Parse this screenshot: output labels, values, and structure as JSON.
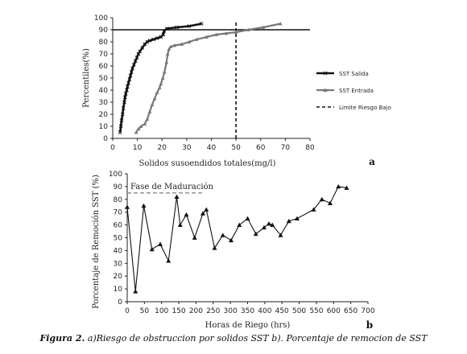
{
  "chart_data": [
    {
      "type": "line",
      "panel": "a",
      "xlabel": "Solidos susoendidos totales(mg/l)",
      "ylabel": "Percentiles(%)",
      "xlim": [
        0,
        80
      ],
      "ylim": [
        0,
        100
      ],
      "xticks": [
        0,
        10,
        20,
        30,
        40,
        50,
        60,
        70,
        80
      ],
      "yticks": [
        0,
        10,
        20,
        30,
        40,
        50,
        60,
        70,
        80,
        90,
        100
      ],
      "legend_position": "right",
      "series": [
        {
          "name": "SST Salida",
          "color": "#111111",
          "marker": "x",
          "x": [
            3,
            3.3,
            3.6,
            4,
            4.3,
            4.7,
            5,
            5.3,
            5.7,
            6,
            6.4,
            6.8,
            7.2,
            7.6,
            8,
            8.6,
            9.2,
            9.8,
            10.4,
            11,
            12,
            13,
            14,
            15,
            16.5,
            18,
            19.5,
            20.5,
            20.8,
            22,
            26,
            31,
            36
          ],
          "y": [
            5,
            10,
            15,
            20,
            25,
            30,
            34,
            37,
            40,
            43,
            46,
            49,
            52,
            55,
            58,
            61,
            64,
            67,
            70,
            72,
            75,
            78,
            80,
            81,
            82,
            83,
            84,
            86,
            89,
            91,
            92,
            93,
            95
          ]
        },
        {
          "name": "SST Entrada",
          "color": "#777777",
          "marker": "triangle",
          "x": [
            9.5,
            10.5,
            11.5,
            13,
            14,
            15,
            16,
            17,
            18,
            19,
            19.5,
            20.3,
            21,
            21.8,
            22.3,
            22.8,
            23.5,
            25,
            28,
            31,
            34,
            38,
            42,
            46,
            50,
            55,
            61,
            68
          ],
          "y": [
            5,
            8,
            10,
            12,
            16,
            22,
            28,
            33,
            38,
            42,
            45,
            50,
            55,
            63,
            70,
            74,
            76,
            77,
            78,
            80,
            82,
            84,
            86,
            87,
            88,
            90,
            92,
            95
          ]
        }
      ],
      "reference_lines": [
        {
          "name": "Limite Riesgo Bajo",
          "axis": "x",
          "value": 50,
          "style": "dashed"
        },
        {
          "axis": "y",
          "value": 90,
          "style": "solid"
        }
      ]
    },
    {
      "type": "line",
      "panel": "b",
      "xlabel": "Horas de Riego (hrs)",
      "ylabel": "Porcentaje de Remoción SST (%)",
      "xlim": [
        0,
        700
      ],
      "ylim": [
        0,
        100
      ],
      "xticks": [
        0,
        50,
        100,
        150,
        200,
        250,
        300,
        350,
        400,
        450,
        500,
        550,
        600,
        650,
        700
      ],
      "yticks": [
        0,
        10,
        20,
        30,
        40,
        50,
        60,
        70,
        80,
        90,
        100
      ],
      "annotations": [
        {
          "text": "Fase de Maduración",
          "x_range": [
            0,
            220
          ],
          "y": 85,
          "style": "dashed"
        }
      ],
      "series": [
        {
          "marker": "triangle",
          "color": "#111111",
          "x": [
            0,
            24,
            48,
            72,
            96,
            120,
            144,
            154,
            172,
            196,
            220,
            230,
            254,
            278,
            302,
            326,
            350,
            374,
            398,
            412,
            422,
            446,
            470,
            494,
            542,
            566,
            590,
            614,
            638
          ],
          "y": [
            74,
            8,
            75,
            41,
            45,
            32,
            82,
            60,
            68,
            50,
            69,
            72,
            42,
            52,
            48,
            60,
            65,
            53,
            58,
            61,
            60,
            52,
            63,
            65,
            72,
            80,
            77,
            90,
            89
          ]
        }
      ]
    }
  ],
  "caption": {
    "label": "Figura 2.",
    "text": " a)Riesgo de obstruccion por solidos SST  b). Porcentaje de remocion de SST"
  }
}
